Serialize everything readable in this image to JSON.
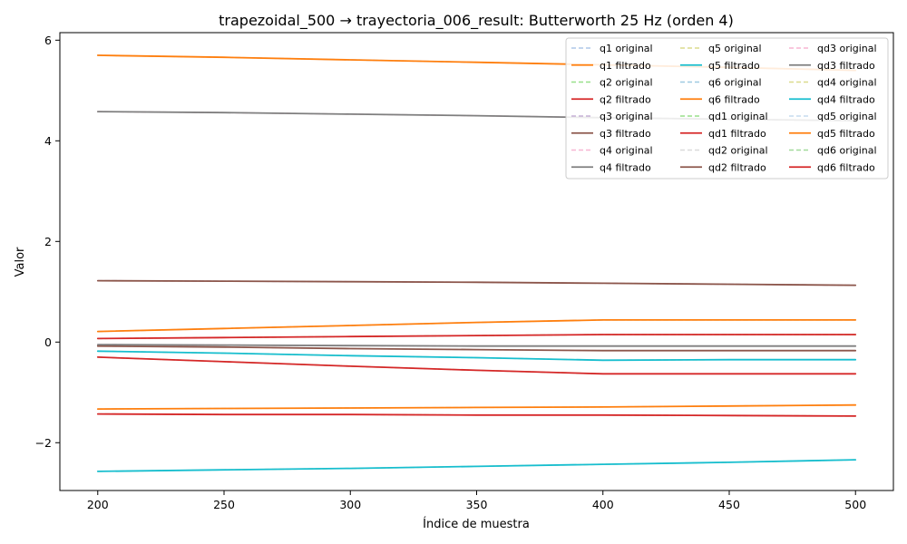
{
  "chart_data": {
    "type": "line",
    "title": "trapezoidal_500 → trayectoria_006_result: Butterworth 25 Hz (orden 4)",
    "xlabel": "Índice de muestra",
    "ylabel": "Valor",
    "xlim": [
      185,
      515
    ],
    "ylim": [
      -2.95,
      6.15
    ],
    "xticks": [
      200,
      250,
      300,
      350,
      400,
      450,
      500
    ],
    "yticks": [
      -2,
      0,
      2,
      4,
      6
    ],
    "ytick_labels": [
      "−2",
      "0",
      "2",
      "4",
      "6"
    ],
    "grid": false,
    "legend_position": "top-right",
    "legend_columns": 3,
    "x": [
      200,
      250,
      300,
      350,
      400,
      450,
      500
    ],
    "series": [
      {
        "name": "q1 original",
        "color": "#aec7e8",
        "style": "dashed",
        "values": [
          5.7,
          5.66,
          5.61,
          5.56,
          5.51,
          5.46,
          5.4
        ]
      },
      {
        "name": "q1 filtrado",
        "color": "#ff7f0e",
        "style": "solid",
        "values": [
          5.7,
          5.66,
          5.61,
          5.56,
          5.51,
          5.46,
          5.4
        ]
      },
      {
        "name": "q2 original",
        "color": "#98df8a",
        "style": "dashed",
        "values": [
          -0.3,
          -0.39,
          -0.48,
          -0.56,
          -0.63,
          -0.63,
          -0.63
        ]
      },
      {
        "name": "q2 filtrado",
        "color": "#d62728",
        "style": "solid",
        "values": [
          -0.3,
          -0.39,
          -0.48,
          -0.56,
          -0.63,
          -0.63,
          -0.63
        ]
      },
      {
        "name": "q3 original",
        "color": "#c5b0d5",
        "style": "dashed",
        "values": [
          1.22,
          1.21,
          1.2,
          1.19,
          1.17,
          1.15,
          1.13
        ]
      },
      {
        "name": "q3 filtrado",
        "color": "#8c564b",
        "style": "solid",
        "values": [
          1.22,
          1.21,
          1.2,
          1.19,
          1.17,
          1.15,
          1.13
        ]
      },
      {
        "name": "q4 original",
        "color": "#f7b6d2",
        "style": "dashed",
        "values": [
          4.58,
          4.56,
          4.53,
          4.5,
          4.46,
          4.43,
          4.4
        ]
      },
      {
        "name": "q4 filtrado",
        "color": "#7f7f7f",
        "style": "solid",
        "values": [
          4.58,
          4.56,
          4.53,
          4.5,
          4.46,
          4.43,
          4.4
        ]
      },
      {
        "name": "q5 original",
        "color": "#dbdb8d",
        "style": "dashed",
        "values": [
          -0.18,
          -0.22,
          -0.27,
          -0.31,
          -0.36,
          -0.35,
          -0.35
        ]
      },
      {
        "name": "q5 filtrado",
        "color": "#17becf",
        "style": "solid",
        "values": [
          -0.18,
          -0.22,
          -0.27,
          -0.31,
          -0.36,
          -0.35,
          -0.35
        ]
      },
      {
        "name": "q6 original",
        "color": "#9ecae1",
        "style": "dashed",
        "values": [
          0.21,
          0.27,
          0.33,
          0.39,
          0.44,
          0.44,
          0.44
        ]
      },
      {
        "name": "q6 filtrado",
        "color": "#ff7f0e",
        "style": "solid",
        "values": [
          0.21,
          0.27,
          0.33,
          0.39,
          0.44,
          0.44,
          0.44
        ]
      },
      {
        "name": "qd1 original",
        "color": "#98df8a",
        "style": "dashed",
        "values": [
          0.07,
          0.09,
          0.11,
          0.13,
          0.15,
          0.15,
          0.15
        ]
      },
      {
        "name": "qd1 filtrado",
        "color": "#d62728",
        "style": "solid",
        "values": [
          0.07,
          0.09,
          0.11,
          0.13,
          0.15,
          0.15,
          0.15
        ]
      },
      {
        "name": "qd2 original",
        "color": "#d9d9d9",
        "style": "dashed",
        "values": [
          -0.08,
          -0.1,
          -0.13,
          -0.15,
          -0.17,
          -0.17,
          -0.17
        ]
      },
      {
        "name": "qd2 filtrado",
        "color": "#8c564b",
        "style": "solid",
        "values": [
          -0.08,
          -0.1,
          -0.13,
          -0.15,
          -0.17,
          -0.17,
          -0.17
        ]
      },
      {
        "name": "qd3 original",
        "color": "#f7b6d2",
        "style": "dashed",
        "values": [
          -0.05,
          -0.06,
          -0.07,
          -0.08,
          -0.08,
          -0.08,
          -0.08
        ]
      },
      {
        "name": "qd3 filtrado",
        "color": "#7f7f7f",
        "style": "solid",
        "values": [
          -0.05,
          -0.06,
          -0.07,
          -0.08,
          -0.08,
          -0.08,
          -0.08
        ]
      },
      {
        "name": "qd4 original",
        "color": "#dbdb8d",
        "style": "dashed",
        "values": [
          -2.57,
          -2.54,
          -2.51,
          -2.47,
          -2.43,
          -2.39,
          -2.34
        ]
      },
      {
        "name": "qd4 filtrado",
        "color": "#17becf",
        "style": "solid",
        "values": [
          -2.57,
          -2.54,
          -2.51,
          -2.47,
          -2.43,
          -2.39,
          -2.34
        ]
      },
      {
        "name": "qd5 original",
        "color": "#c6dbef",
        "style": "dashed",
        "values": [
          -1.33,
          -1.32,
          -1.31,
          -1.3,
          -1.29,
          -1.27,
          -1.25
        ]
      },
      {
        "name": "qd5 filtrado",
        "color": "#ff7f0e",
        "style": "solid",
        "values": [
          -1.33,
          -1.32,
          -1.31,
          -1.3,
          -1.29,
          -1.27,
          -1.25
        ]
      },
      {
        "name": "qd6 original",
        "color": "#a1d99b",
        "style": "dashed",
        "values": [
          -1.43,
          -1.44,
          -1.44,
          -1.45,
          -1.45,
          -1.46,
          -1.47
        ]
      },
      {
        "name": "qd6 filtrado",
        "color": "#d62728",
        "style": "solid",
        "values": [
          -1.43,
          -1.44,
          -1.44,
          -1.45,
          -1.45,
          -1.46,
          -1.47
        ]
      }
    ]
  }
}
